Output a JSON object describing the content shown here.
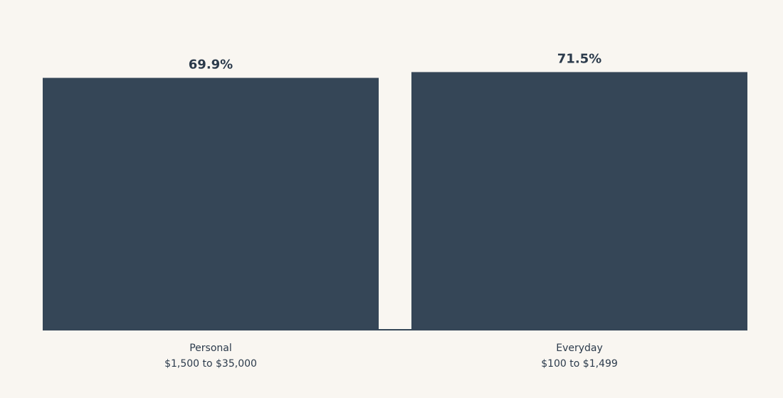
{
  "chart_data": {
    "type": "bar",
    "title": "",
    "xlabel": "",
    "ylabel": "",
    "categories": [
      [
        "Personal",
        "$1,500 to $35,000"
      ],
      [
        "Everyday",
        "$100 to $1,499"
      ]
    ],
    "values": [
      69.9,
      71.5
    ],
    "value_labels": [
      "69.9%",
      "71.5%"
    ],
    "ylim": [
      0,
      100
    ],
    "grid": false,
    "legend": "none"
  },
  "colors": {
    "background": "#f9f6f1",
    "bar": "#354657",
    "text": "#2b3a4b"
  }
}
